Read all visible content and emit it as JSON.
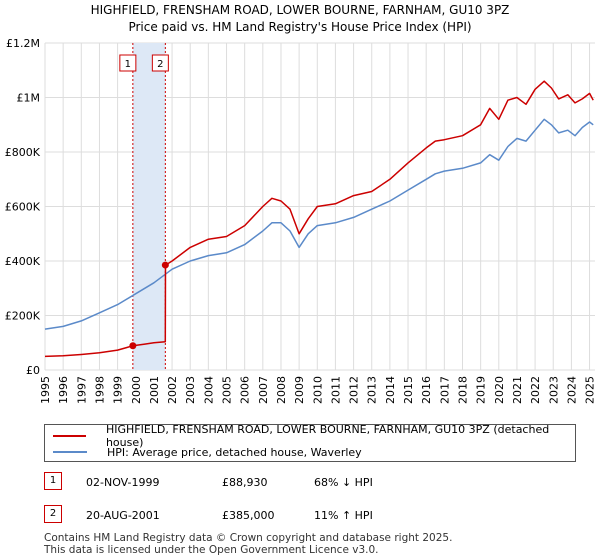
{
  "chart_data": {
    "type": "line",
    "title": "HIGHFIELD, FRENSHAM ROAD, LOWER BOURNE, FARNHAM, GU10 3PZ",
    "subtitle": "Price paid vs. HM Land Registry's House Price Index (HPI)",
    "xlabel": "",
    "ylabel": "",
    "xlim": [
      1995,
      2025.3
    ],
    "ylim": [
      0,
      1200000
    ],
    "y_ticks": [
      0,
      200000,
      400000,
      600000,
      800000,
      1000000,
      1200000
    ],
    "y_tick_labels": [
      "£0",
      "£200K",
      "£400K",
      "£600K",
      "£800K",
      "£1M",
      "£1.2M"
    ],
    "x_ticks": [
      "1995",
      "1996",
      "1997",
      "1998",
      "1999",
      "2000",
      "2001",
      "2002",
      "2003",
      "2004",
      "2005",
      "2006",
      "2007",
      "2008",
      "2009",
      "2010",
      "2011",
      "2012",
      "2013",
      "2014",
      "2015",
      "2016",
      "2017",
      "2018",
      "2019",
      "2020",
      "2021",
      "2022",
      "2023",
      "2024",
      "2025"
    ],
    "grid": true,
    "colors": {
      "property": "#cc0000",
      "hpi": "#5b8ac9",
      "shade": "#dde8f6",
      "grid": "#dddddd"
    },
    "series": [
      {
        "name": "HIGHFIELD, FRENSHAM ROAD, LOWER BOURNE, FARNHAM, GU10 3PZ (detached house)",
        "color": "#cc0000",
        "x": [
          1995.0,
          1996.0,
          1997.0,
          1998.0,
          1999.0,
          1999.84,
          2000.5,
          2001.0,
          2001.63,
          2001.64,
          2002.0,
          2003.0,
          2004.0,
          2005.0,
          2006.0,
          2007.0,
          2007.5,
          2008.0,
          2008.5,
          2009.0,
          2009.5,
          2010.0,
          2011.0,
          2012.0,
          2013.0,
          2014.0,
          2015.0,
          2016.0,
          2016.5,
          2017.0,
          2018.0,
          2019.0,
          2019.5,
          2020.0,
          2020.5,
          2021.0,
          2021.5,
          2022.0,
          2022.5,
          2022.9,
          2023.3,
          2023.8,
          2024.2,
          2024.6,
          2025.0,
          2025.2
        ],
        "y": [
          50000,
          52000,
          57000,
          63000,
          73000,
          88930,
          95000,
          100000,
          104000,
          385000,
          400000,
          450000,
          480000,
          490000,
          530000,
          600000,
          630000,
          620000,
          590000,
          500000,
          555000,
          600000,
          610000,
          640000,
          655000,
          700000,
          760000,
          815000,
          840000,
          845000,
          860000,
          900000,
          960000,
          920000,
          990000,
          1000000,
          975000,
          1030000,
          1060000,
          1035000,
          995000,
          1010000,
          980000,
          995000,
          1015000,
          990000
        ]
      },
      {
        "name": "HPI: Average price, detached house, Waverley",
        "color": "#5b8ac9",
        "x": [
          1995.0,
          1996.0,
          1997.0,
          1998.0,
          1999.0,
          2000.0,
          2001.0,
          2002.0,
          2003.0,
          2004.0,
          2005.0,
          2006.0,
          2007.0,
          2007.5,
          2008.0,
          2008.5,
          2009.0,
          2009.5,
          2010.0,
          2011.0,
          2012.0,
          2013.0,
          2014.0,
          2015.0,
          2016.0,
          2016.5,
          2017.0,
          2018.0,
          2019.0,
          2019.5,
          2020.0,
          2020.5,
          2021.0,
          2021.5,
          2022.0,
          2022.5,
          2022.9,
          2023.3,
          2023.8,
          2024.2,
          2024.6,
          2025.0,
          2025.2
        ],
        "y": [
          150000,
          160000,
          180000,
          210000,
          240000,
          280000,
          320000,
          370000,
          400000,
          420000,
          430000,
          460000,
          510000,
          540000,
          540000,
          510000,
          450000,
          500000,
          530000,
          540000,
          560000,
          590000,
          620000,
          660000,
          700000,
          720000,
          730000,
          740000,
          760000,
          790000,
          770000,
          820000,
          850000,
          840000,
          880000,
          920000,
          900000,
          870000,
          880000,
          860000,
          890000,
          910000,
          900000
        ]
      }
    ],
    "annotations": [
      {
        "label": "1",
        "x": 1999.84,
        "y": 88930
      },
      {
        "label": "2",
        "x": 2001.63,
        "y": 385000
      }
    ],
    "shaded_range": [
      1999.84,
      2001.63
    ]
  },
  "legend": {
    "property_label": "HIGHFIELD, FRENSHAM ROAD, LOWER BOURNE, FARNHAM, GU10 3PZ (detached house)",
    "hpi_label": "HPI: Average price, detached house, Waverley"
  },
  "sales": [
    {
      "num": "1",
      "date": "02-NOV-1999",
      "price": "£88,930",
      "hpi": "68% ↓ HPI"
    },
    {
      "num": "2",
      "date": "20-AUG-2001",
      "price": "£385,000",
      "hpi": "11% ↑ HPI"
    }
  ],
  "footer": {
    "line1": "Contains HM Land Registry data © Crown copyright and database right 2025.",
    "line2": "This data is licensed under the Open Government Licence v3.0."
  }
}
